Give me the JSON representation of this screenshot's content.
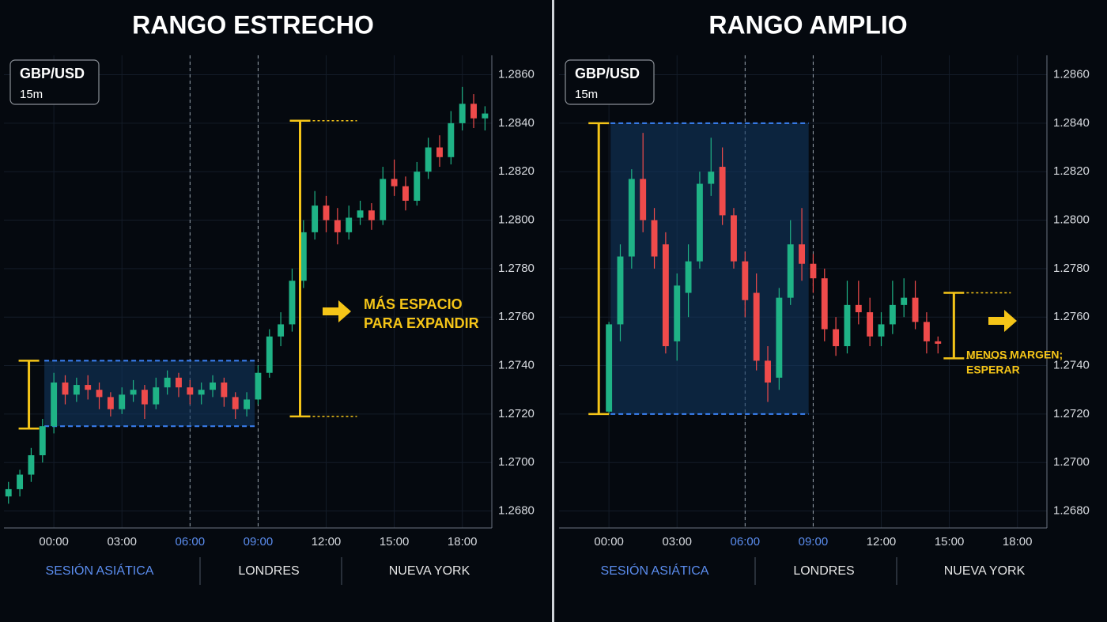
{
  "chart_data": [
    {
      "type": "candlestick",
      "title": "RANGO ESTRECHO",
      "symbol": "GBP/USD",
      "timeframe": "15m",
      "up_color": "#1fb386",
      "down_color": "#ef4b4b",
      "xlim": [
        -2.2,
        19.3
      ],
      "ylim": [
        1.2673,
        1.2868
      ],
      "xticks": [
        {
          "value": 0,
          "label": "00:00"
        },
        {
          "value": 3,
          "label": "03:00"
        },
        {
          "value": 6,
          "label": "06:00"
        },
        {
          "value": 9,
          "label": "09:00"
        },
        {
          "value": 12,
          "label": "12:00"
        },
        {
          "value": 15,
          "label": "15:00"
        },
        {
          "value": 18,
          "label": "18:00"
        }
      ],
      "yticks": [
        {
          "value": 1.268,
          "label": "1.2680"
        },
        {
          "value": 1.27,
          "label": "1.2700"
        },
        {
          "value": 1.272,
          "label": "1.2720"
        },
        {
          "value": 1.274,
          "label": "1.2740"
        },
        {
          "value": 1.276,
          "label": "1.2760"
        },
        {
          "value": 1.278,
          "label": "1.2780"
        },
        {
          "value": 1.28,
          "label": "1.2800"
        },
        {
          "value": 1.282,
          "label": "1.2820"
        },
        {
          "value": 1.284,
          "label": "1.2840"
        },
        {
          "value": 1.286,
          "label": "1.2860"
        }
      ],
      "session_lines": [
        6,
        9
      ],
      "sessions": [
        {
          "name": "SESIÓN ASIÁTICA",
          "color": "#5b8def"
        },
        {
          "name": "LONDRES",
          "color": "#e6e6e6"
        },
        {
          "name": "NUEVA YORK",
          "color": "#e6e6e6"
        }
      ],
      "x": [
        -2,
        -1.5,
        -1,
        -0.5,
        0,
        0.5,
        1,
        1.5,
        2,
        2.5,
        3,
        3.5,
        4,
        4.5,
        5,
        5.5,
        6,
        6.5,
        7,
        7.5,
        8,
        8.5,
        9,
        9.5,
        10,
        10.5,
        11,
        11.5,
        12,
        12.5,
        13,
        13.5,
        14,
        14.5,
        15,
        15.5,
        16,
        16.5,
        17,
        17.5,
        18,
        18.5,
        19
      ],
      "open": [
        1.2686,
        1.2689,
        1.2695,
        1.2703,
        1.2715,
        1.2733,
        1.2728,
        1.2732,
        1.273,
        1.2727,
        1.2722,
        1.2728,
        1.273,
        1.2724,
        1.2731,
        1.2735,
        1.2731,
        1.2728,
        1.273,
        1.2733,
        1.2727,
        1.2722,
        1.2726,
        1.2737,
        1.2752,
        1.2757,
        1.2775,
        1.2795,
        1.2806,
        1.28,
        1.2795,
        1.2801,
        1.2804,
        1.28,
        1.2817,
        1.2814,
        1.2808,
        1.282,
        1.283,
        1.2826,
        1.284,
        1.2848,
        1.2842
      ],
      "high": [
        1.2692,
        1.2697,
        1.2706,
        1.2718,
        1.2737,
        1.2736,
        1.2735,
        1.2736,
        1.2733,
        1.2729,
        1.2731,
        1.2734,
        1.2732,
        1.2735,
        1.2738,
        1.2737,
        1.2734,
        1.2733,
        1.2736,
        1.2735,
        1.2729,
        1.2729,
        1.274,
        1.2755,
        1.2762,
        1.278,
        1.28,
        1.2812,
        1.281,
        1.2805,
        1.2806,
        1.2808,
        1.2807,
        1.2822,
        1.2825,
        1.2818,
        1.2824,
        1.2834,
        1.2835,
        1.2845,
        1.2855,
        1.2852,
        1.2847
      ],
      "low": [
        1.2683,
        1.2686,
        1.2692,
        1.27,
        1.2712,
        1.2724,
        1.2725,
        1.2726,
        1.2722,
        1.2719,
        1.272,
        1.2725,
        1.2718,
        1.2722,
        1.2728,
        1.2727,
        1.2724,
        1.2724,
        1.2727,
        1.2723,
        1.2718,
        1.2719,
        1.2724,
        1.2735,
        1.2748,
        1.2754,
        1.2772,
        1.2792,
        1.2795,
        1.279,
        1.2792,
        1.2798,
        1.2796,
        1.2798,
        1.281,
        1.2804,
        1.2806,
        1.2817,
        1.2822,
        1.2823,
        1.2837,
        1.2838,
        1.2837
      ],
      "close": [
        1.2689,
        1.2695,
        1.2703,
        1.2715,
        1.2733,
        1.2728,
        1.2732,
        1.273,
        1.2727,
        1.2722,
        1.2728,
        1.273,
        1.2724,
        1.2731,
        1.2735,
        1.2731,
        1.2728,
        1.273,
        1.2733,
        1.2727,
        1.2722,
        1.2726,
        1.2737,
        1.2752,
        1.2757,
        1.2775,
        1.2795,
        1.2806,
        1.28,
        1.2795,
        1.2801,
        1.2804,
        1.28,
        1.2817,
        1.2814,
        1.2808,
        1.282,
        1.283,
        1.2826,
        1.284,
        1.2848,
        1.2842,
        1.2844
      ],
      "range_box": {
        "x": [
          -0.42,
          8.85
        ],
        "y": [
          1.2715,
          1.2742
        ]
      },
      "brackets": [
        {
          "x": -1.1,
          "y": [
            1.2714,
            1.2742
          ],
          "dotted": false
        },
        {
          "x": 10.85,
          "y": [
            1.2719,
            1.2841
          ],
          "dotted": true
        }
      ],
      "annotation": [
        "MÁS ESPACIO",
        "PARA EXPANDIR"
      ]
    },
    {
      "type": "candlestick",
      "title": "RANGO AMPLIO",
      "symbol": "GBP/USD",
      "timeframe": "15m",
      "up_color": "#1fb386",
      "down_color": "#ef4b4b",
      "xlim": [
        -2.2,
        19.3
      ],
      "ylim": [
        1.2673,
        1.2868
      ],
      "xticks": [
        {
          "value": 0,
          "label": "00:00"
        },
        {
          "value": 3,
          "label": "03:00"
        },
        {
          "value": 6,
          "label": "06:00"
        },
        {
          "value": 9,
          "label": "09:00"
        },
        {
          "value": 12,
          "label": "12:00"
        },
        {
          "value": 15,
          "label": "15:00"
        },
        {
          "value": 18,
          "label": "18:00"
        }
      ],
      "yticks": [
        {
          "value": 1.268,
          "label": "1.2680"
        },
        {
          "value": 1.27,
          "label": "1.2700"
        },
        {
          "value": 1.272,
          "label": "1.2720"
        },
        {
          "value": 1.274,
          "label": "1.2740"
        },
        {
          "value": 1.276,
          "label": "1.2760"
        },
        {
          "value": 1.278,
          "label": "1.2780"
        },
        {
          "value": 1.28,
          "label": "1.2800"
        },
        {
          "value": 1.282,
          "label": "1.2820"
        },
        {
          "value": 1.284,
          "label": "1.2840"
        },
        {
          "value": 1.286,
          "label": "1.2860"
        }
      ],
      "session_lines": [
        6,
        9
      ],
      "sessions": [
        {
          "name": "SESIÓN ASIÁTICA",
          "color": "#5b8def"
        },
        {
          "name": "LONDRES",
          "color": "#e6e6e6"
        },
        {
          "name": "NUEVA YORK",
          "color": "#e6e6e6"
        }
      ],
      "x": [
        0,
        0.5,
        1,
        1.5,
        2,
        2.5,
        3,
        3.5,
        4,
        4.5,
        5,
        5.5,
        6,
        6.5,
        7,
        7.5,
        8,
        8.5,
        9,
        9.5,
        10,
        10.5,
        11,
        11.5,
        12,
        12.5,
        13,
        13.5,
        14,
        14.5
      ],
      "open": [
        1.2721,
        1.2757,
        1.2785,
        1.2817,
        1.28,
        1.279,
        1.275,
        1.277,
        1.2783,
        1.2815,
        1.2822,
        1.2802,
        1.2783,
        1.277,
        1.2742,
        1.2735,
        1.2768,
        1.279,
        1.2782,
        1.2776,
        1.2755,
        1.2748,
        1.2765,
        1.2762,
        1.2752,
        1.2757,
        1.2765,
        1.2768,
        1.2758,
        1.275
      ],
      "high": [
        1.2758,
        1.279,
        1.2821,
        1.2836,
        1.2805,
        1.2795,
        1.2778,
        1.279,
        1.282,
        1.2834,
        1.283,
        1.2805,
        1.2787,
        1.2778,
        1.2748,
        1.2772,
        1.28,
        1.2805,
        1.2786,
        1.278,
        1.276,
        1.2775,
        1.2775,
        1.2768,
        1.2762,
        1.2775,
        1.2776,
        1.2775,
        1.2762,
        1.2752
      ],
      "low": [
        1.272,
        1.275,
        1.278,
        1.2795,
        1.278,
        1.2745,
        1.2742,
        1.276,
        1.278,
        1.281,
        1.2798,
        1.278,
        1.276,
        1.2738,
        1.2725,
        1.273,
        1.2765,
        1.2775,
        1.277,
        1.275,
        1.2744,
        1.2745,
        1.2757,
        1.2748,
        1.2748,
        1.2753,
        1.276,
        1.2755,
        1.2745,
        1.2745
      ],
      "close": [
        1.2757,
        1.2785,
        1.2817,
        1.28,
        1.2785,
        1.2748,
        1.2773,
        1.2783,
        1.2815,
        1.282,
        1.2802,
        1.2783,
        1.2767,
        1.2742,
        1.2733,
        1.2768,
        1.279,
        1.2782,
        1.2776,
        1.2755,
        1.2748,
        1.2765,
        1.2762,
        1.2752,
        1.2757,
        1.2765,
        1.2768,
        1.2758,
        1.275,
        1.2749
      ],
      "range_box": {
        "x": [
          0.07,
          8.8
        ],
        "y": [
          1.272,
          1.284
        ]
      },
      "brackets": [
        {
          "x": -0.45,
          "y": [
            1.272,
            1.284
          ],
          "dotted": false
        },
        {
          "x": 15.2,
          "y": [
            1.2743,
            1.277
          ],
          "dotted": true
        }
      ],
      "annotation": [
        "MENOS MARGEN;",
        "ESPERAR"
      ]
    }
  ]
}
